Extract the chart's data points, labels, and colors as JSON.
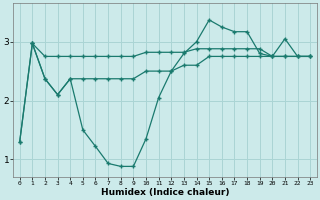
{
  "xlabel": "Humidex (Indice chaleur)",
  "background_color": "#cceaea",
  "grid_color": "#aad4d4",
  "line_color": "#1a7a6e",
  "xlim": [
    -0.5,
    23.5
  ],
  "ylim": [
    0.7,
    3.65
  ],
  "yticks": [
    1,
    2,
    3
  ],
  "xticks": [
    0,
    1,
    2,
    3,
    4,
    5,
    6,
    7,
    8,
    9,
    10,
    11,
    12,
    13,
    14,
    15,
    16,
    17,
    18,
    19,
    20,
    21,
    22,
    23
  ],
  "line1_x": [
    0,
    1,
    2,
    3,
    4,
    5,
    6,
    7,
    8,
    9,
    10,
    11,
    12,
    13,
    14,
    15,
    16,
    17,
    18,
    19,
    20,
    21,
    22,
    23
  ],
  "line1_y": [
    1.3,
    2.97,
    2.75,
    2.75,
    2.75,
    2.75,
    2.75,
    2.75,
    2.75,
    2.75,
    2.82,
    2.82,
    2.82,
    2.82,
    2.88,
    2.88,
    2.88,
    2.88,
    2.88,
    2.88,
    2.75,
    2.75,
    2.75,
    2.75
  ],
  "line2_x": [
    1,
    2,
    3,
    4,
    5,
    6,
    7,
    8,
    9,
    10,
    11,
    12,
    13,
    14,
    15,
    16,
    17,
    18,
    19,
    20,
    21,
    22,
    23
  ],
  "line2_y": [
    2.97,
    2.37,
    2.1,
    2.37,
    2.37,
    2.37,
    2.37,
    2.37,
    2.37,
    2.5,
    2.5,
    2.5,
    2.6,
    2.6,
    2.75,
    2.75,
    2.75,
    2.75,
    2.75,
    2.75,
    2.75,
    2.75,
    2.75
  ],
  "line3_x": [
    0,
    1,
    2,
    3,
    4,
    5,
    6,
    7,
    8,
    9,
    10,
    11,
    12,
    13,
    14,
    15,
    16,
    17,
    18,
    19,
    20,
    21,
    22,
    23
  ],
  "line3_y": [
    1.3,
    2.97,
    2.37,
    2.1,
    2.37,
    1.5,
    1.22,
    0.93,
    0.88,
    0.88,
    1.35,
    2.05,
    2.5,
    2.8,
    3.0,
    3.37,
    3.25,
    3.17,
    3.17,
    2.8,
    2.75,
    3.05,
    2.75,
    2.75
  ]
}
